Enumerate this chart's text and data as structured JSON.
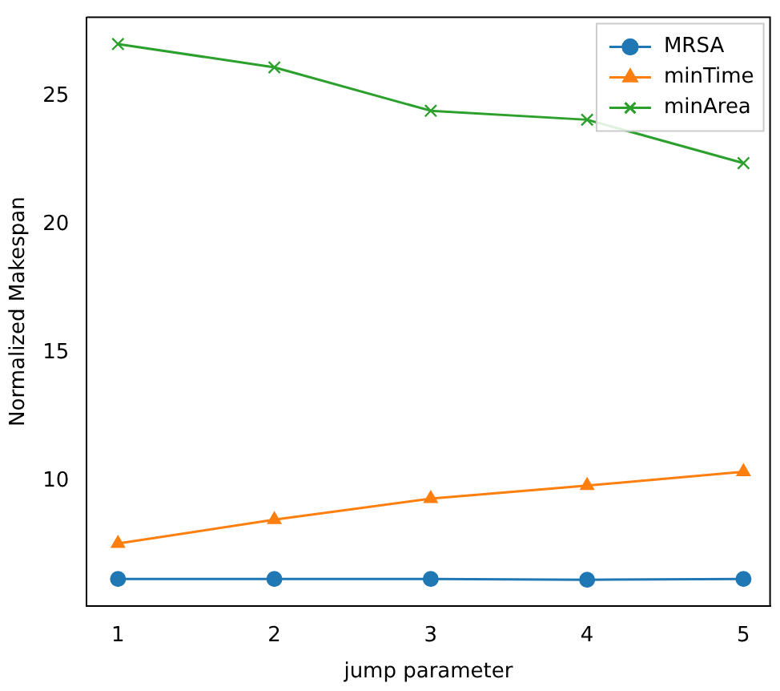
{
  "chart_data": {
    "type": "line",
    "xlabel": "jump parameter",
    "ylabel": "Normalized Makespan",
    "x": [
      1,
      2,
      3,
      4,
      5
    ],
    "xlim": [
      0.8,
      5.17
    ],
    "xticks": [
      1,
      2,
      3,
      4,
      5
    ],
    "ylim": [
      5.16,
      28.08
    ],
    "yticks": [
      10,
      15,
      20,
      25
    ],
    "grid": false,
    "legend": "top right",
    "series": [
      {
        "name": "MRSA",
        "color": "#1f77b4",
        "marker": "circle",
        "values": [
          6.2,
          6.2,
          6.2,
          6.17,
          6.2
        ]
      },
      {
        "name": "minTime",
        "color": "#ff7f0e",
        "marker": "triangle",
        "values": [
          7.58,
          8.51,
          9.33,
          9.84,
          10.38
        ]
      },
      {
        "name": "minArea",
        "color": "#2ca02c",
        "marker": "cross",
        "values": [
          27.04,
          26.13,
          24.44,
          24.09,
          22.4
        ]
      }
    ]
  }
}
